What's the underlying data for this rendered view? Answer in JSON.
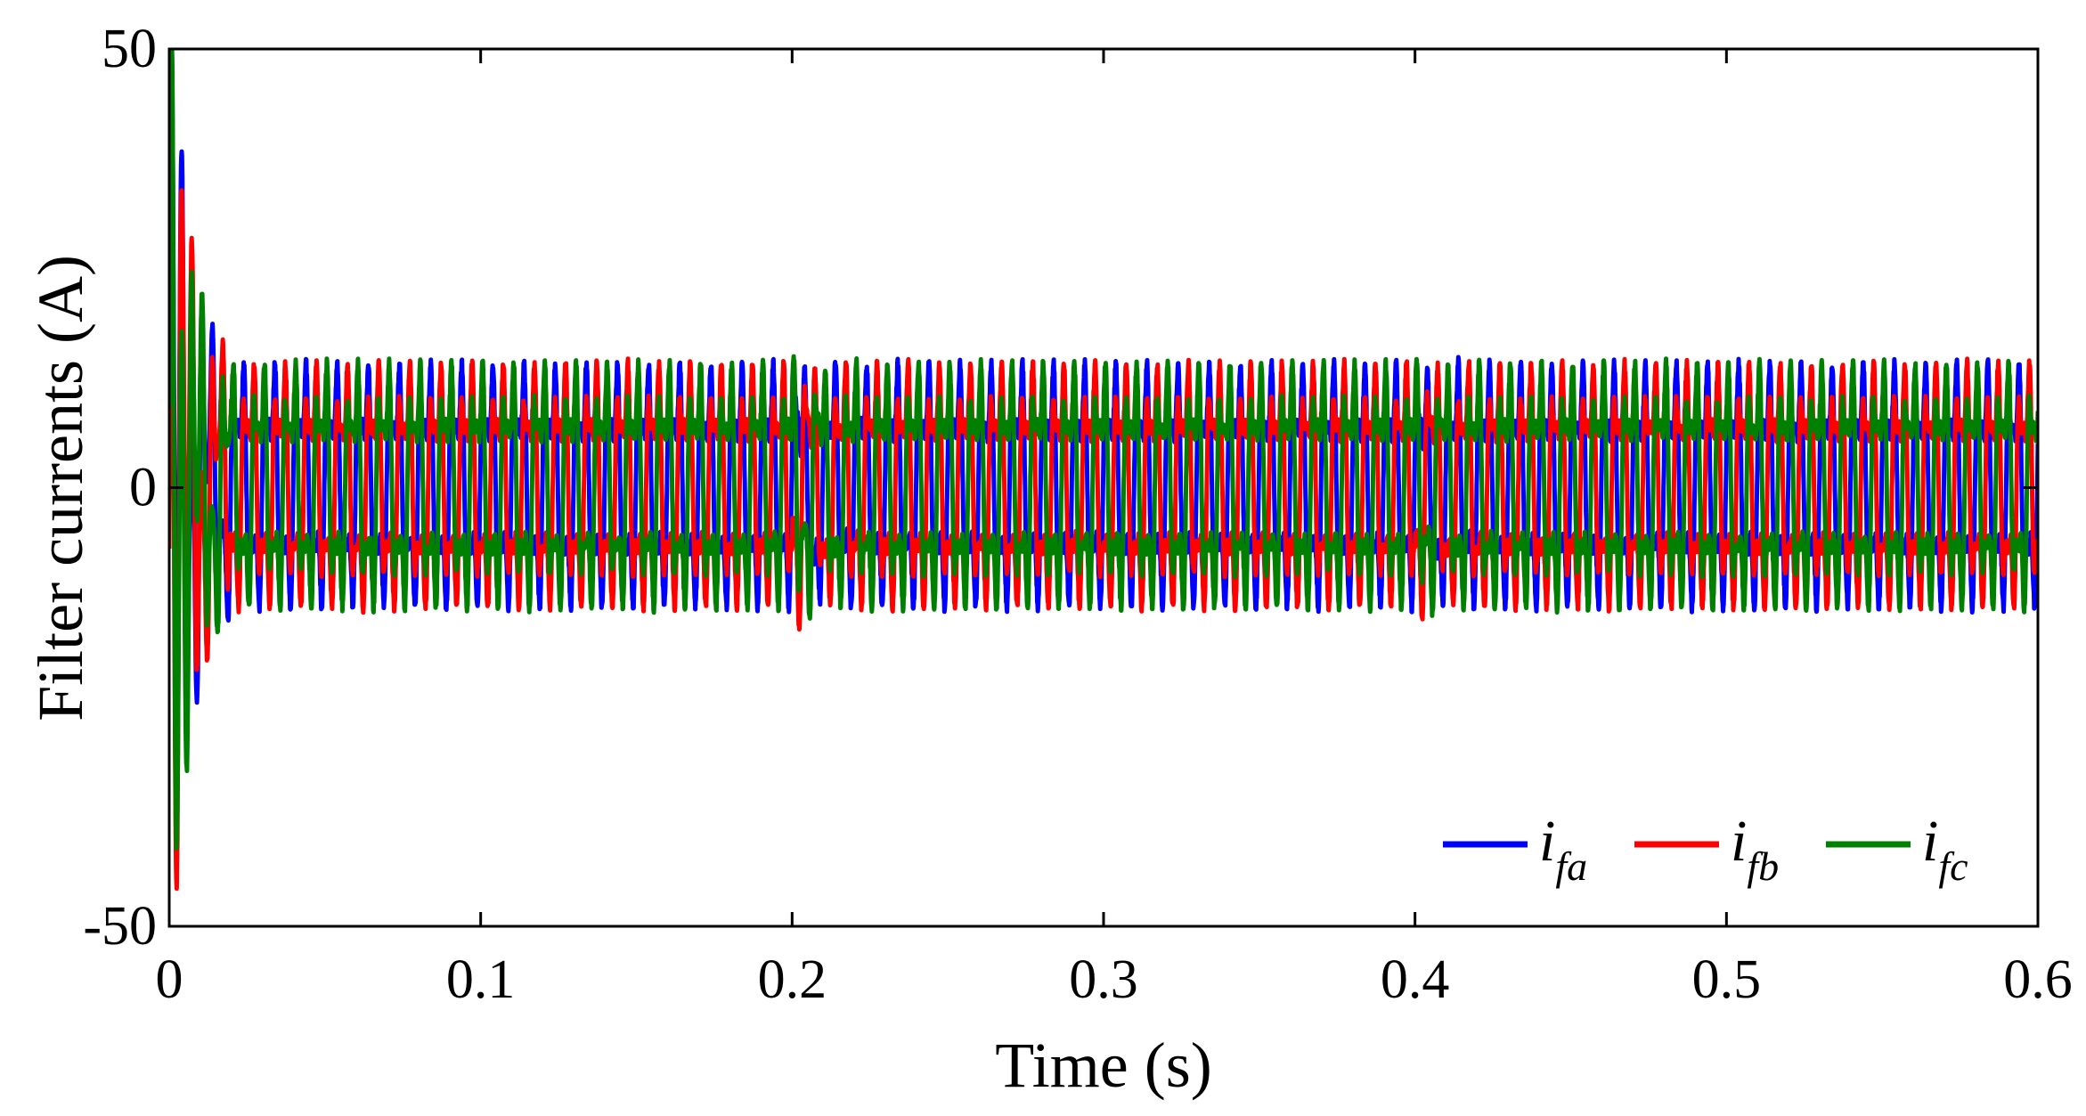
{
  "chart_data": {
    "type": "line",
    "xlabel": "Time (s)",
    "ylabel": "Filter currents (A)",
    "xlim": [
      0,
      0.6
    ],
    "ylim": [
      -50,
      50
    ],
    "x_ticks": [
      0,
      0.1,
      0.2,
      0.3,
      0.4,
      0.5,
      0.6
    ],
    "x_tick_labels": [
      "0",
      "0.1",
      "0.2",
      "0.3",
      "0.4",
      "0.5",
      "0.6"
    ],
    "y_ticks": [
      -50,
      0,
      50
    ],
    "y_tick_labels": [
      "-50",
      "0",
      "50"
    ],
    "grid": false,
    "legend_position": "bottom-right",
    "fundamental_frequency_hz": 100,
    "steady_state": {
      "positive_peak": 15,
      "negative_peak": -14.5,
      "secondary_positive_peak": 11.5,
      "secondary_negative_peak": -10.5
    },
    "startup_transient": {
      "t_end": 0.02,
      "max": 50,
      "min": -50
    },
    "disturbances": [
      {
        "t": 0.2,
        "peak": 17,
        "trough": -17
      },
      {
        "t": 0.4,
        "peak": 16,
        "trough": -16
      }
    ],
    "series": [
      {
        "name_main": "i",
        "name_sub": "fa",
        "color": "#0000ff",
        "phase_deg": 0
      },
      {
        "name_main": "i",
        "name_sub": "fb",
        "color": "#ff0000",
        "phase_deg": -120
      },
      {
        "name_main": "i",
        "name_sub": "fc",
        "color": "#008000",
        "phase_deg": 120
      }
    ]
  }
}
